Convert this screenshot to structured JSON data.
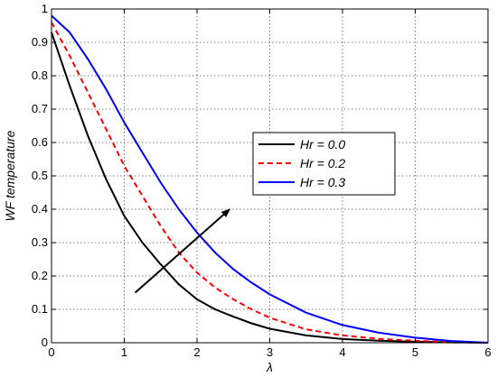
{
  "chart_data": {
    "type": "line",
    "xlabel": "λ",
    "ylabel": "WF temperature",
    "xlim": [
      0,
      6
    ],
    "ylim": [
      0,
      1
    ],
    "xticks": [
      0,
      1,
      2,
      3,
      4,
      5,
      6
    ],
    "yticks": [
      0,
      0.1,
      0.2,
      0.3,
      0.4,
      0.5,
      0.6,
      0.7,
      0.8,
      0.9,
      1
    ],
    "xtick_labels": [
      "0",
      "1",
      "2",
      "3",
      "4",
      "5",
      "6"
    ],
    "ytick_labels": [
      "0",
      "0.1",
      "0.2",
      "0.3",
      "0.4",
      "0.5",
      "0.6",
      "0.7",
      "0.8",
      "0.9",
      "1"
    ],
    "grid": true,
    "legend_position": "center-right",
    "series": [
      {
        "name": "Hr = 0.0",
        "color": "#000000",
        "style": "solid",
        "x": [
          0,
          0.25,
          0.5,
          0.75,
          1,
          1.25,
          1.5,
          1.75,
          2,
          2.25,
          2.5,
          2.75,
          3,
          3.5,
          4,
          4.5,
          5,
          5.5,
          6
        ],
        "y": [
          0.93,
          0.77,
          0.62,
          0.49,
          0.38,
          0.3,
          0.235,
          0.175,
          0.13,
          0.1,
          0.078,
          0.058,
          0.042,
          0.022,
          0.011,
          0.006,
          0.003,
          0.001,
          0
        ]
      },
      {
        "name": "Hr = 0.2",
        "color": "#ff0000",
        "style": "dashed",
        "x": [
          0,
          0.25,
          0.5,
          0.75,
          1,
          1.25,
          1.5,
          1.75,
          2,
          2.25,
          2.5,
          2.75,
          3,
          3.5,
          4,
          4.5,
          5,
          5.5,
          6
        ],
        "y": [
          0.96,
          0.86,
          0.75,
          0.64,
          0.53,
          0.44,
          0.35,
          0.27,
          0.21,
          0.165,
          0.13,
          0.1,
          0.075,
          0.04,
          0.022,
          0.012,
          0.006,
          0.002,
          0
        ]
      },
      {
        "name": "Hr = 0.3",
        "color": "#0000ff",
        "style": "solid",
        "x": [
          0,
          0.25,
          0.5,
          0.75,
          1,
          1.25,
          1.5,
          1.75,
          2,
          2.25,
          2.5,
          2.75,
          3,
          3.5,
          4,
          4.5,
          5,
          5.5,
          6
        ],
        "y": [
          0.98,
          0.93,
          0.85,
          0.76,
          0.66,
          0.57,
          0.48,
          0.4,
          0.33,
          0.27,
          0.22,
          0.18,
          0.145,
          0.09,
          0.053,
          0.03,
          0.015,
          0.005,
          0
        ]
      }
    ],
    "annotations": [
      {
        "type": "arrow",
        "from": [
          1.15,
          0.15
        ],
        "to": [
          2.45,
          0.4
        ]
      }
    ]
  }
}
